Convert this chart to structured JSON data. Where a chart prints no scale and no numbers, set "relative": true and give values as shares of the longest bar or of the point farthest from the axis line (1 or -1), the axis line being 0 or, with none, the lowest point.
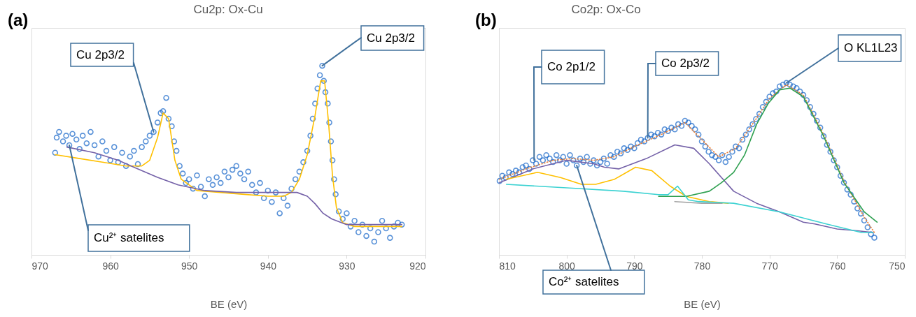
{
  "chart_data": [
    {
      "type": "scatter",
      "title": "Cu2p: Ox-Cu",
      "xlabel": "BE (eV)",
      "relative": true,
      "xlim": [
        970,
        920
      ],
      "xticks": [
        970,
        960,
        950,
        940,
        930,
        920
      ],
      "annotations": [
        "(a)",
        {
          "text": "Cu 2p3/2",
          "x": 954.5,
          "y": 0.65
        },
        {
          "text": "Cu 2p3/2",
          "x": 933.1,
          "y": 1.0
        },
        {
          "text": "Cu²⁺ satelites",
          "x": 965.2,
          "y": 0.58
        }
      ],
      "series": [
        {
          "marker": "circle",
          "color": "#1464c8",
          "x": [
            967.0,
            966.8,
            966.5,
            966.0,
            965.6,
            965.2,
            964.8,
            964.3,
            963.9,
            963.5,
            963.0,
            962.5,
            962.0,
            961.5,
            961.0,
            960.5,
            960.0,
            959.5,
            959.0,
            958.5,
            958.0,
            957.5,
            957.0,
            956.5,
            956.0,
            955.5,
            955.0,
            954.5,
            954.0,
            953.6,
            953.3,
            952.9,
            952.6,
            952.2,
            951.9,
            951.6,
            951.2,
            950.8,
            950.4,
            950.0,
            949.5,
            949.0,
            948.5,
            948.0,
            947.5,
            947.0,
            946.5,
            946.0,
            945.5,
            945.0,
            944.5,
            944.0,
            943.5,
            943.0,
            942.5,
            942.0,
            941.5,
            941.0,
            940.5,
            940.0,
            939.5,
            939.0,
            938.5,
            938.0,
            937.5,
            937.0,
            936.5,
            936.0,
            935.5,
            935.0,
            934.6,
            934.3,
            934.0,
            933.7,
            933.4,
            933.1,
            932.9,
            932.7,
            932.4,
            932.2,
            932.0,
            931.8,
            931.6,
            931.4,
            931.0,
            930.5,
            930.0,
            929.5,
            929.0,
            928.5,
            928.0,
            927.5,
            927.0,
            926.5,
            926.0,
            925.5,
            925.0,
            924.5,
            924.0,
            923.5,
            923.0
          ],
          "values": [
            0.54,
            0.62,
            0.65,
            0.6,
            0.63,
            0.58,
            0.64,
            0.61,
            0.56,
            0.63,
            0.59,
            0.65,
            0.58,
            0.52,
            0.6,
            0.55,
            0.5,
            0.57,
            0.49,
            0.54,
            0.47,
            0.52,
            0.55,
            0.48,
            0.57,
            0.6,
            0.63,
            0.65,
            0.7,
            0.75,
            0.76,
            0.83,
            0.72,
            0.68,
            0.6,
            0.55,
            0.47,
            0.43,
            0.38,
            0.4,
            0.35,
            0.42,
            0.36,
            0.31,
            0.4,
            0.37,
            0.41,
            0.38,
            0.44,
            0.41,
            0.45,
            0.47,
            0.43,
            0.4,
            0.44,
            0.37,
            0.33,
            0.38,
            0.3,
            0.34,
            0.28,
            0.33,
            0.22,
            0.3,
            0.26,
            0.35,
            0.4,
            0.44,
            0.49,
            0.55,
            0.63,
            0.72,
            0.8,
            0.88,
            0.95,
            1.0,
            0.92,
            0.86,
            0.8,
            0.7,
            0.6,
            0.5,
            0.4,
            0.32,
            0.23,
            0.19,
            0.22,
            0.15,
            0.18,
            0.12,
            0.16,
            0.1,
            0.14,
            0.07,
            0.12,
            0.18,
            0.14,
            0.09,
            0.15,
            0.17,
            0.16
          ]
        },
        {
          "type": "line",
          "color": "#ffc000",
          "x": [
            967.0,
            964,
            961,
            958,
            956,
            955,
            954,
            953.3,
            952.6,
            951.8,
            951,
            949,
            946,
            943,
            940,
            938,
            937,
            936,
            935,
            934,
            933.3,
            932.8,
            932.3,
            931.8,
            931.3,
            930.5,
            929,
            923
          ],
          "values": [
            0.53,
            0.51,
            0.49,
            0.47,
            0.47,
            0.5,
            0.62,
            0.75,
            0.72,
            0.5,
            0.4,
            0.34,
            0.33,
            0.32,
            0.31,
            0.31,
            0.33,
            0.4,
            0.53,
            0.74,
            0.92,
            0.92,
            0.7,
            0.42,
            0.25,
            0.17,
            0.15,
            0.15
          ]
        },
        {
          "type": "line",
          "color": "#7461a8",
          "x": [
            965.5,
            962,
            959,
            956.8,
            954,
            951.4,
            948,
            944,
            940,
            936.3,
            935,
            934,
            933,
            931.9,
            930,
            923
          ],
          "values": [
            0.57,
            0.54,
            0.5,
            0.46,
            0.41,
            0.37,
            0.34,
            0.33,
            0.33,
            0.33,
            0.31,
            0.27,
            0.22,
            0.19,
            0.16,
            0.16
          ]
        }
      ]
    },
    {
      "type": "scatter",
      "title": "Co2p: Ox-Co",
      "xlabel": "BE (eV)",
      "relative": true,
      "xlim": [
        810,
        750
      ],
      "xticks": [
        810,
        800,
        790,
        780,
        770,
        760,
        750
      ],
      "annotations": [
        "(b)",
        {
          "text": "Co 2p1/2",
          "x": 804.8,
          "y": 0.55
        },
        {
          "text": "Co 2p3/2",
          "x": 788,
          "y": 0.68
        },
        {
          "text": "O KL1L23",
          "x": 767.5,
          "y": 1.0
        },
        {
          "text": "Co²⁺ satelites",
          "x": 798.5,
          "y": 0.52
        }
      ],
      "series": [
        {
          "marker": "circle",
          "color": "#1464c8",
          "x": [
            809.9,
            809.5,
            809,
            808.5,
            808,
            807.5,
            807,
            806.5,
            806,
            805.5,
            805,
            804.5,
            804,
            803.5,
            803,
            802.5,
            802,
            801.5,
            801,
            800.5,
            800,
            799.5,
            799,
            798.5,
            798,
            797.5,
            797,
            796.5,
            796,
            795.5,
            795,
            794.5,
            794,
            793.5,
            793,
            792.5,
            792,
            791.5,
            791,
            790.5,
            790,
            789.5,
            789,
            788.5,
            788,
            787.5,
            787,
            786.5,
            786,
            785.5,
            785,
            784.5,
            784,
            783.5,
            783,
            782.5,
            782,
            781.5,
            781,
            780.5,
            780,
            779.5,
            779,
            778.5,
            778,
            777.5,
            777,
            776.5,
            776,
            775.5,
            775,
            774.5,
            774,
            773.5,
            773,
            772.5,
            772,
            771.5,
            771,
            770.5,
            770,
            769.5,
            769,
            768.5,
            768,
            767.5,
            767,
            766.5,
            766,
            765.5,
            765,
            764.5,
            764,
            763.5,
            763,
            762.5,
            762,
            761.5,
            761,
            760.5,
            760,
            759.5,
            759,
            758.5,
            758,
            757.5,
            757,
            756.5,
            756,
            755.5,
            755,
            754.5
          ],
          "values": [
            0.43,
            0.46,
            0.45,
            0.48,
            0.47,
            0.49,
            0.48,
            0.51,
            0.52,
            0.5,
            0.55,
            0.53,
            0.57,
            0.55,
            0.58,
            0.56,
            0.54,
            0.58,
            0.55,
            0.57,
            0.53,
            0.58,
            0.55,
            0.52,
            0.56,
            0.54,
            0.57,
            0.53,
            0.55,
            0.52,
            0.54,
            0.56,
            0.53,
            0.58,
            0.57,
            0.6,
            0.59,
            0.62,
            0.61,
            0.63,
            0.62,
            0.65,
            0.67,
            0.66,
            0.68,
            0.7,
            0.69,
            0.71,
            0.7,
            0.73,
            0.72,
            0.74,
            0.73,
            0.76,
            0.75,
            0.78,
            0.77,
            0.75,
            0.73,
            0.7,
            0.66,
            0.63,
            0.6,
            0.58,
            0.57,
            0.55,
            0.58,
            0.54,
            0.57,
            0.6,
            0.63,
            0.62,
            0.67,
            0.7,
            0.73,
            0.76,
            0.79,
            0.82,
            0.86,
            0.89,
            0.92,
            0.94,
            0.95,
            0.98,
            0.99,
            1.0,
            0.99,
            0.98,
            0.97,
            0.95,
            0.93,
            0.9,
            0.86,
            0.82,
            0.78,
            0.74,
            0.69,
            0.64,
            0.6,
            0.55,
            0.51,
            0.46,
            0.42,
            0.38,
            0.35,
            0.31,
            0.27,
            0.24,
            0.2,
            0.16,
            0.12,
            0.1
          ]
        },
        {
          "type": "line",
          "color": "#ed7d31",
          "line_style": "dotted",
          "x": [
            809.9,
            806,
            802,
            799,
            796,
            793,
            790,
            786,
            782.5,
            780,
            777.5,
            775,
            772,
            770,
            767.5,
            765,
            762,
            759,
            756,
            754.5
          ],
          "values": [
            0.44,
            0.5,
            0.55,
            0.56,
            0.55,
            0.57,
            0.63,
            0.7,
            0.77,
            0.67,
            0.57,
            0.62,
            0.79,
            0.91,
            0.99,
            0.93,
            0.7,
            0.43,
            0.22,
            0.13
          ]
        },
        {
          "type": "line",
          "color": "#7461a8",
          "x": [
            809.9,
            805,
            800,
            796,
            794.4,
            792.3,
            788.2,
            784,
            781.2,
            778.9,
            777.1,
            775.3,
            771.9,
            768.5,
            765,
            763.3,
            760,
            757,
            754.7
          ],
          "values": [
            0.42,
            0.5,
            0.55,
            0.53,
            0.51,
            0.5,
            0.56,
            0.64,
            0.62,
            0.53,
            0.45,
            0.37,
            0.3,
            0.25,
            0.19,
            0.18,
            0.15,
            0.14,
            0.13
          ]
        },
        {
          "type": "line",
          "color": "#ffc000",
          "x": [
            808.9,
            804.3,
            800.9,
            797.8,
            795.7,
            792.9,
            789.8,
            787.4,
            784.7,
            782.3,
            778.9,
            776.1
          ],
          "values": [
            0.44,
            0.48,
            0.45,
            0.41,
            0.41,
            0.44,
            0.51,
            0.49,
            0.4,
            0.34,
            0.31,
            0.3
          ]
        },
        {
          "type": "line",
          "color": "#a5a5a5",
          "x": [
            784,
            780,
            777
          ],
          "values": [
            0.31,
            0.3,
            0.3
          ]
        },
        {
          "type": "line",
          "color": "#2ea050",
          "x": [
            786.4,
            782.3,
            778.9,
            777.1,
            775.3,
            773.7,
            771.9,
            770.2,
            768.5,
            767,
            765,
            762,
            759,
            756,
            754.1
          ],
          "values": [
            0.34,
            0.34,
            0.37,
            0.42,
            0.48,
            0.58,
            0.76,
            0.88,
            0.96,
            0.97,
            0.92,
            0.69,
            0.42,
            0.25,
            0.19
          ]
        },
        {
          "type": "line",
          "color": "#3cd2d2",
          "x": [
            808.9,
            800,
            791.6,
            786.4,
            785,
            783.6,
            782,
            780.5,
            775.3,
            768.5,
            761.6,
            756.4,
            754.7
          ],
          "values": [
            0.41,
            0.39,
            0.37,
            0.35,
            0.35,
            0.4,
            0.32,
            0.31,
            0.3,
            0.25,
            0.18,
            0.13,
            0.13
          ]
        }
      ]
    }
  ]
}
